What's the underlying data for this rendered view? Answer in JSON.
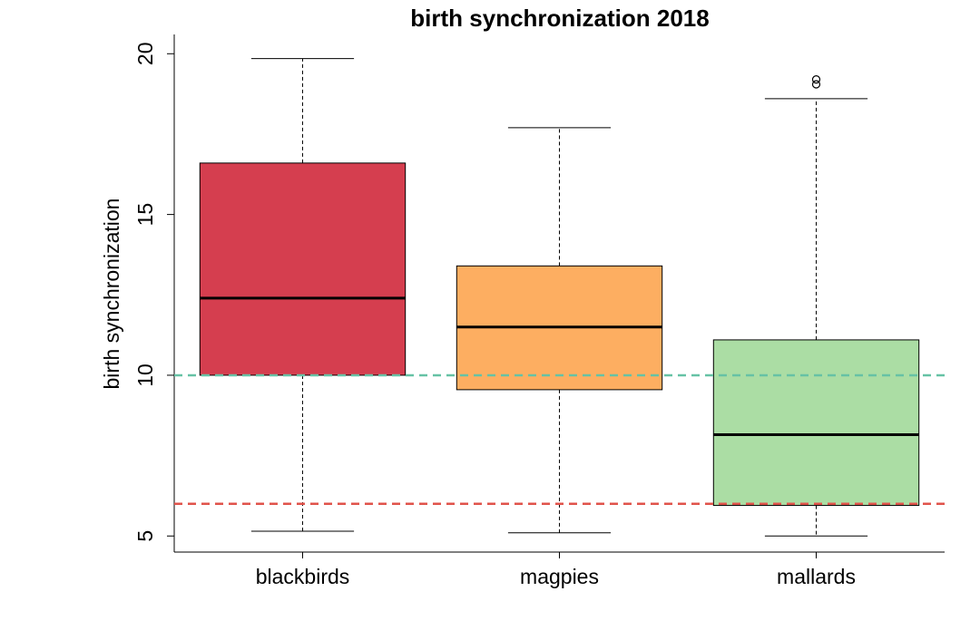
{
  "chart_data": {
    "type": "boxplot",
    "title": "birth synchronization 2018",
    "xlabel": "",
    "ylabel": "birth synchronization",
    "ylim": [
      4.5,
      20.6
    ],
    "yticks": [
      5,
      10,
      15,
      20
    ],
    "grid": false,
    "categories": [
      "blackbirds",
      "magpies",
      "mallards"
    ],
    "boxes": [
      {
        "category": "blackbirds",
        "whisker_low": 5.15,
        "q1": 10.0,
        "median": 12.4,
        "q3": 16.6,
        "whisker_high": 19.85,
        "outliers": [],
        "fill": "#d53e4f"
      },
      {
        "category": "magpies",
        "whisker_low": 5.1,
        "q1": 9.55,
        "median": 11.5,
        "q3": 13.4,
        "whisker_high": 17.7,
        "outliers": [],
        "fill": "#fdae61"
      },
      {
        "category": "mallards",
        "whisker_low": 5.0,
        "q1": 5.95,
        "median": 8.15,
        "q3": 11.1,
        "whisker_high": 18.6,
        "outliers": [
          19.05,
          19.2
        ],
        "fill": "#abdda4"
      }
    ],
    "reference_lines": [
      {
        "y": 10,
        "color": "#66c2a5",
        "style": "dashed"
      },
      {
        "y": 6,
        "color": "#e0534b",
        "style": "dashed"
      }
    ]
  }
}
